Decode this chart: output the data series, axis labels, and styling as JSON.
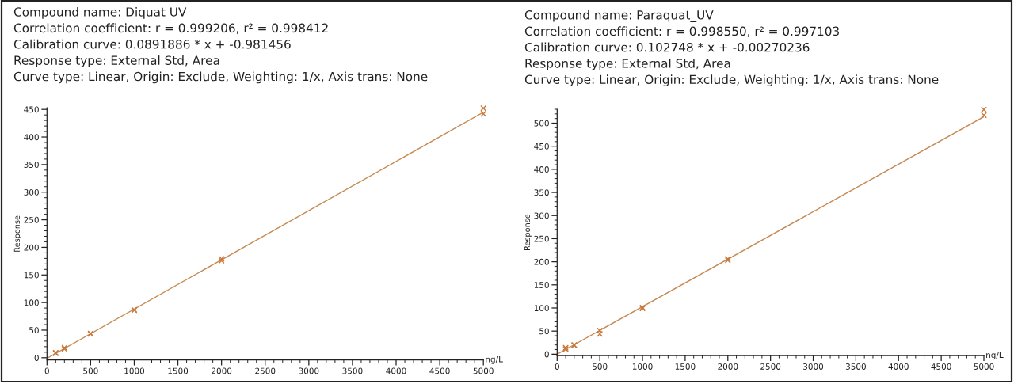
{
  "chart_data": [
    {
      "type": "scatter",
      "title": "Compound name: Diquat UV",
      "annotations": [
        "Correlation coefficient: r = 0.999206, r² = 0.998412",
        "Calibration curve: 0.0891886 * x + -0.981456",
        "Response type: External Std, Area",
        "Curve type: Linear, Origin: Exclude, Weighting: 1/x, Axis trans: None"
      ],
      "xlabel": "ng/L",
      "ylabel": "Response",
      "xlim": [
        0,
        5000
      ],
      "xticks": [
        0,
        500,
        1000,
        1500,
        2000,
        2500,
        3000,
        3500,
        4000,
        4500,
        5000
      ],
      "ylim": [
        -4,
        453
      ],
      "yticks": [
        0,
        50,
        100,
        150,
        200,
        250,
        300,
        350,
        400,
        450
      ],
      "series": [
        {
          "marker": "cross",
          "color": "#c8783a",
          "x": [
            100,
            100,
            200,
            200,
            500,
            500,
            1000,
            1000,
            2000,
            2000,
            5000,
            5000
          ],
          "values": [
            8,
            9,
            16,
            18,
            43,
            44,
            86,
            87,
            176,
            179,
            442,
            452
          ]
        },
        {
          "type": "line",
          "color": "#c68a52",
          "x": [
            0,
            5000
          ],
          "values": [
            -1,
            445
          ]
        }
      ]
    },
    {
      "type": "scatter",
      "title": "Compound name: Paraquat_UV",
      "annotations": [
        "Correlation coefficient: r = 0.998550, r² = 0.997103",
        "Calibration curve: 0.102748 * x + -0.00270236",
        "Response type: External Std, Area",
        "Curve type: Linear, Origin: Exclude, Weighting: 1/x, Axis trans: None"
      ],
      "xlabel": "ng/L",
      "ylabel": "Response",
      "xlim": [
        0,
        5000
      ],
      "xticks": [
        0,
        500,
        1000,
        1500,
        2000,
        2500,
        3000,
        3500,
        4000,
        4500,
        5000
      ],
      "ylim": [
        -3,
        530
      ],
      "yticks": [
        0,
        50,
        100,
        150,
        200,
        250,
        300,
        350,
        400,
        450,
        500
      ],
      "series": [
        {
          "marker": "cross",
          "color": "#c8783a",
          "x": [
            100,
            100,
            200,
            200,
            500,
            500,
            1000,
            1000,
            2000,
            2000,
            5000,
            5000
          ],
          "values": [
            11,
            14,
            19,
            20,
            44,
            51,
            99,
            101,
            203,
            206,
            517,
            529
          ]
        },
        {
          "type": "line",
          "color": "#c68a52",
          "x": [
            0,
            5000
          ],
          "values": [
            0,
            514
          ]
        }
      ]
    }
  ]
}
